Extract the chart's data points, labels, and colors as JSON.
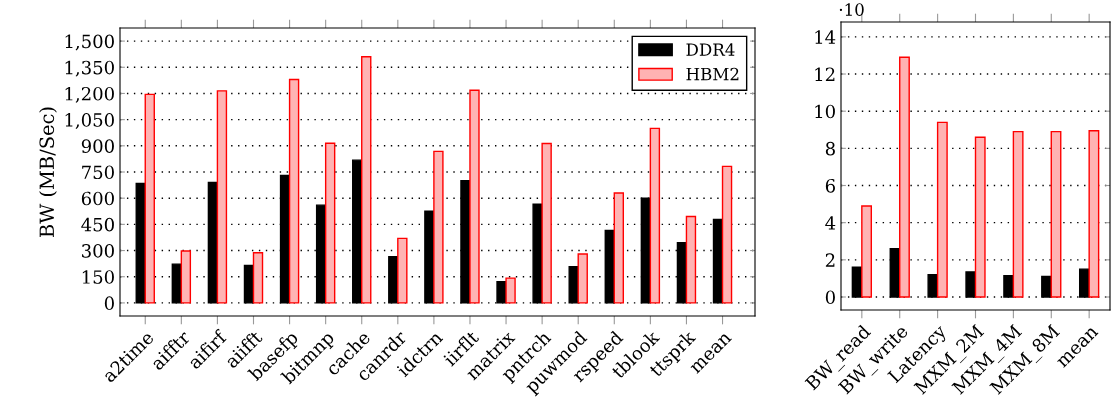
{
  "chart_data": [
    {
      "type": "bar",
      "ylabel": "BW (MB/Sec)",
      "categories": [
        "a2time",
        "aifftr",
        "aifirf",
        "aiifft",
        "basefp",
        "bitmnp",
        "cache",
        "canrdr",
        "idctrn",
        "iirflt",
        "matrix",
        "pntrch",
        "puwmod",
        "rspeed",
        "tblook",
        "ttsprk",
        "mean"
      ],
      "series": [
        {
          "name": "DDR4",
          "color": "#000000",
          "values": [
            685,
            222,
            690,
            215,
            730,
            560,
            818,
            265,
            525,
            700,
            122,
            565,
            208,
            415,
            600,
            345,
            478
          ]
        },
        {
          "name": "HBM2",
          "color": "#ffb3b3",
          "values": [
            1195,
            297,
            1215,
            287,
            1280,
            915,
            1410,
            370,
            868,
            1218,
            142,
            913,
            280,
            630,
            1000,
            495,
            782
          ]
        }
      ],
      "ylim": [
        -75,
        1575
      ],
      "yticks": [
        {
          "value": 0,
          "label": "0"
        },
        {
          "value": 150,
          "label": "150"
        },
        {
          "value": 300,
          "label": "300"
        },
        {
          "value": 450,
          "label": "450"
        },
        {
          "value": 600,
          "label": "600"
        },
        {
          "value": 750,
          "label": "750"
        },
        {
          "value": 900,
          "label": "900"
        },
        {
          "value": 1050,
          "label": "1,050"
        },
        {
          "value": 1200,
          "label": "1,200"
        },
        {
          "value": 1350,
          "label": "1,350"
        },
        {
          "value": 1500,
          "label": "1,500"
        }
      ],
      "grid": "y",
      "legend": "top right"
    },
    {
      "type": "bar",
      "categories": [
        "BW_read",
        "BW_write",
        "Latency",
        "MXM_2M",
        "MXM_4M",
        "MXM_8M",
        "mean"
      ],
      "series": [
        {
          "color": "#000000",
          "values": [
            1.6,
            2.6,
            1.2,
            1.35,
            1.15,
            1.1,
            1.5
          ]
        },
        {
          "color": "#ffb3b3",
          "values": [
            4.9,
            12.9,
            9.4,
            8.6,
            8.9,
            8.9,
            8.95
          ]
        }
      ],
      "ylim": [
        -0.7,
        14.8
      ],
      "yticks": [
        0,
        2,
        4,
        6,
        8,
        10,
        12,
        14
      ],
      "grid": "y",
      "annotations": [
        "·10"
      ]
    }
  ]
}
